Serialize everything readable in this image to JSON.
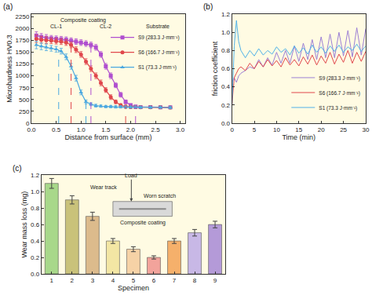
{
  "chart_data": [
    {
      "type": "line",
      "title": "(a)",
      "x_label": "Distance from surface (mm)",
      "y_label": "Microhardness HV0.3",
      "x": [
        0.1,
        0.2,
        0.3,
        0.4,
        0.5,
        0.6,
        0.7,
        0.8,
        0.9,
        1.0,
        1.1,
        1.2,
        1.3,
        1.4,
        1.5,
        1.6,
        1.7,
        1.8,
        1.9,
        2.0,
        2.1,
        2.2,
        2.4,
        2.6,
        2.8
      ],
      "series": [
        {
          "name": "S9 (283.3 J·mm⁻¹)",
          "color": "#b04fcf",
          "marker": "square",
          "values": [
            1850,
            1820,
            1800,
            1790,
            1780,
            1770,
            1760,
            1740,
            1720,
            1700,
            1680,
            1650,
            1600,
            1450,
            1200,
            1000,
            800,
            600,
            450,
            380,
            350,
            340,
            340,
            335,
            335
          ],
          "errors": [
            80,
            70,
            70,
            60,
            60,
            60,
            60,
            60,
            60,
            60,
            60,
            60,
            60,
            60,
            60,
            60,
            50,
            50,
            40,
            30,
            30,
            25,
            25,
            25,
            25
          ],
          "boundaries": [
            1.2,
            2.1
          ]
        },
        {
          "name": "S6 (166.7 J·mm⁻¹)",
          "color": "#e0474c",
          "marker": "circle",
          "values": [
            1780,
            1760,
            1750,
            1740,
            1730,
            1720,
            1700,
            1650,
            1550,
            1450,
            1300,
            1150,
            1000,
            850,
            700,
            550,
            450,
            380,
            350,
            340,
            340,
            335,
            335,
            335,
            330
          ],
          "errors": [
            80,
            70,
            70,
            60,
            60,
            60,
            60,
            60,
            60,
            60,
            60,
            60,
            60,
            60,
            50,
            50,
            40,
            30,
            30,
            25,
            25,
            25,
            25,
            25,
            25
          ],
          "boundaries": [
            0.8,
            1.9
          ]
        },
        {
          "name": "S1 (73.3 J·mm⁻¹)",
          "color": "#4aa8e0",
          "marker": "triangle-up",
          "values": [
            1650,
            1620,
            1600,
            1580,
            1560,
            1520,
            1400,
            1200,
            950,
            650,
            450,
            400,
            370,
            360,
            350,
            350,
            345,
            345,
            340,
            340,
            340,
            335,
            335,
            335,
            330
          ],
          "errors": [
            80,
            70,
            70,
            60,
            60,
            60,
            60,
            60,
            60,
            50,
            40,
            30,
            30,
            25,
            25,
            25,
            25,
            25,
            25,
            25,
            25,
            25,
            25,
            25,
            25
          ],
          "boundaries": [
            0.55,
            1.1
          ]
        }
      ],
      "xlim": [
        0,
        3.1
      ],
      "xticks": [
        {
          "value": 0,
          "label": "0.0"
        },
        0.5,
        {
          "value": 1,
          "label": "1.0"
        },
        1.5,
        {
          "value": 2,
          "label": "2.0"
        },
        2.5,
        {
          "value": 3,
          "label": "3.0"
        }
      ],
      "ylim": [
        0,
        2300
      ],
      "yticks": [
        0,
        250,
        500,
        750,
        1000,
        1250,
        1500,
        1750,
        2000,
        2250
      ],
      "annotations": [
        "Composite coating",
        "CL-1",
        "CL-2",
        "Substrate"
      ],
      "grid": false,
      "legend": "center right"
    },
    {
      "type": "line",
      "title": "(b)",
      "x_label": "Time (min)",
      "y_label": "friction coefficient",
      "x": [
        0,
        0.5,
        1,
        1.5,
        2,
        3,
        4,
        5,
        6,
        7,
        8,
        9,
        10,
        11,
        12,
        13,
        14,
        15,
        16,
        17,
        18,
        19,
        20,
        21,
        22,
        23,
        24,
        25,
        26,
        27,
        28,
        29,
        30
      ],
      "series": [
        {
          "name": "S9 (283.3 J·mm⁻¹)",
          "color": "#9b7fd4",
          "marker": "none",
          "values": [
            0.45,
            0.5,
            0.45,
            0.52,
            0.55,
            0.58,
            0.62,
            0.6,
            0.7,
            0.62,
            0.72,
            0.64,
            0.78,
            0.66,
            0.8,
            0.66,
            0.85,
            0.68,
            0.88,
            0.7,
            0.92,
            0.7,
            0.95,
            0.72,
            0.98,
            0.72,
            1.0,
            0.74,
            1.02,
            0.73,
            1.05,
            0.75,
            1.04
          ]
        },
        {
          "name": "S6 (166.7 J·mm⁻¹)",
          "color": "#e0474c",
          "marker": "none",
          "values": [
            0.2,
            0.5,
            0.55,
            0.6,
            0.62,
            0.58,
            0.66,
            0.6,
            0.68,
            0.62,
            0.7,
            0.63,
            0.69,
            0.62,
            0.72,
            0.64,
            0.7,
            0.63,
            0.73,
            0.65,
            0.75,
            0.64,
            0.74,
            0.66,
            0.78,
            0.65,
            0.76,
            0.67,
            0.8,
            0.66,
            0.78,
            0.68,
            0.79
          ]
        },
        {
          "name": "S1 (73.3 J·mm⁻¹)",
          "color": "#4fb0e8",
          "marker": "none",
          "values": [
            0.2,
            0.85,
            1.13,
            0.9,
            0.8,
            0.72,
            0.8,
            0.74,
            0.82,
            0.75,
            0.8,
            0.76,
            0.84,
            0.78,
            0.82,
            0.75,
            0.85,
            0.77,
            0.83,
            0.76,
            0.86,
            0.78,
            0.84,
            0.77,
            0.85,
            0.79,
            0.86,
            0.78,
            0.84,
            0.8,
            0.87,
            0.79,
            0.85
          ]
        }
      ],
      "xlim": [
        0,
        30
      ],
      "xticks": [
        0,
        5,
        10,
        15,
        20,
        25,
        30
      ],
      "ylim": [
        0,
        1.2
      ],
      "yticks": [
        {
          "value": 0,
          "label": "0.0"
        },
        0.2,
        0.4,
        0.6,
        0.8,
        {
          "value": 1,
          "label": "1.0"
        },
        1.2
      ],
      "grid": false,
      "legend": "lower right"
    },
    {
      "type": "bar",
      "title": "(c)",
      "x_label": "Specimen",
      "y_label": "Wear mass loss (mg)",
      "categories": [
        "1",
        "2",
        "3",
        "4",
        "5",
        "6",
        "7",
        "8",
        "9"
      ],
      "values": [
        1.1,
        0.9,
        0.7,
        0.4,
        0.3,
        0.2,
        0.4,
        0.5,
        0.6
      ],
      "errors": [
        0.06,
        0.05,
        0.05,
        0.03,
        0.03,
        0.02,
        0.03,
        0.04,
        0.04
      ],
      "colors": [
        "#a8d88a",
        "#c9c27a",
        "#dcbb8c",
        "#f3e6a4",
        "#f6d2a6",
        "#f2a39b",
        "#f5b06b",
        "#c8b8e6",
        "#b49ad8"
      ],
      "ylim": [
        0,
        1.2
      ],
      "yticks": [
        {
          "value": 0,
          "label": "0.0"
        },
        0.2,
        0.4,
        0.6,
        0.8,
        {
          "value": 1,
          "label": "1.0"
        },
        1.2
      ],
      "annotations": [
        "Load",
        "Wear track",
        "Worn scratch",
        "Composite coating"
      ],
      "grid": false
    }
  ]
}
